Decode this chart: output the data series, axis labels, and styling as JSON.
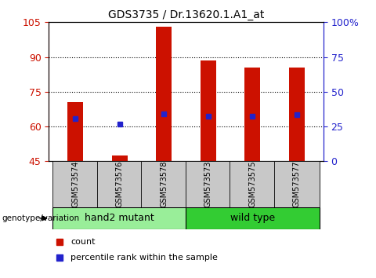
{
  "title": "GDS3735 / Dr.13620.1.A1_at",
  "samples": [
    "GSM573574",
    "GSM573576",
    "GSM573578",
    "GSM573573",
    "GSM573575",
    "GSM573577"
  ],
  "bar_heights": [
    70.5,
    47.5,
    103.0,
    88.5,
    85.5,
    85.5
  ],
  "blue_markers": [
    63.5,
    61.0,
    65.5,
    64.5,
    64.5,
    65.0
  ],
  "bar_base": 45,
  "ylim_left": [
    45,
    105
  ],
  "ylim_right": [
    0,
    100
  ],
  "yticks_left": [
    45,
    60,
    75,
    90,
    105
  ],
  "ytick_labels_left": [
    "45",
    "60",
    "75",
    "90",
    "105"
  ],
  "yticks_right": [
    0,
    25,
    50,
    75,
    100
  ],
  "ytick_labels_right": [
    "0",
    "25",
    "50",
    "75",
    "100%"
  ],
  "groups": [
    {
      "label": "hand2 mutant",
      "indices": [
        0,
        1,
        2
      ],
      "color": "#99ee99"
    },
    {
      "label": "wild type",
      "indices": [
        3,
        4,
        5
      ],
      "color": "#33cc33"
    }
  ],
  "bar_color": "#cc1100",
  "marker_color": "#2222cc",
  "plot_bg": "#ffffff",
  "genotype_label": "genotype/variation",
  "legend_count": "count",
  "legend_pct": "percentile rank within the sample",
  "grid_ticks": [
    60,
    75,
    90
  ]
}
